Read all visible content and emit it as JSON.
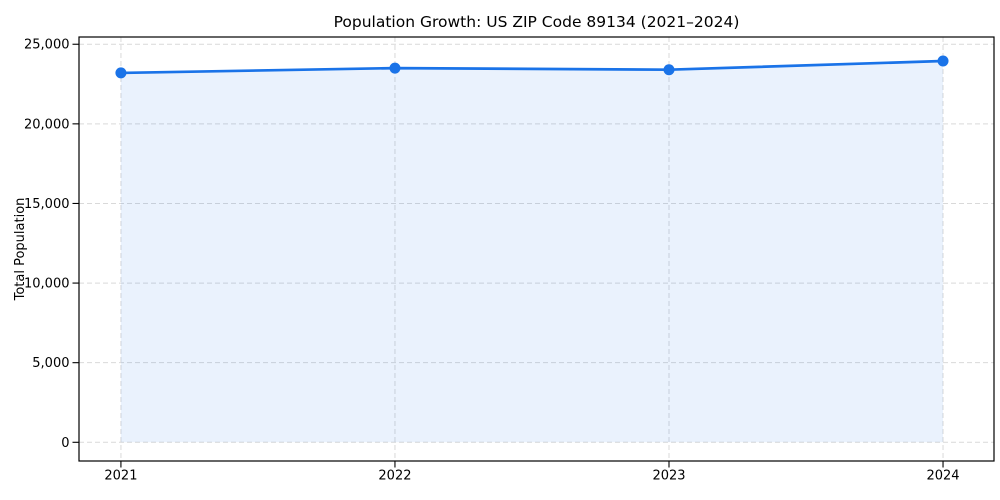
{
  "window": {
    "background": "#ffffff"
  },
  "chart_data": {
    "type": "area",
    "title": "Population Growth: US ZIP Code 89134 (2021–2024)",
    "xlabel": "",
    "ylabel": "Total Population",
    "x": [
      2021,
      2022,
      2023,
      2024
    ],
    "x_tick_labels": [
      "2021",
      "2022",
      "2023",
      "2024"
    ],
    "values": [
      23200,
      23500,
      23400,
      23950
    ],
    "yticks": [
      0,
      5000,
      10000,
      15000,
      20000,
      25000
    ],
    "y_tick_labels": [
      "0",
      "5,000",
      "10,000",
      "15,000",
      "20,000",
      "25,000"
    ],
    "ylim": [
      -1175,
      25455
    ],
    "xlim": [
      2020.847,
      2024.186
    ],
    "grid": true,
    "legend": "none",
    "marker": "circle",
    "line_color": "#1a73e8",
    "marker_color": "#1a73e8",
    "fill_color": "rgba(26,115,232,0.09)",
    "grid_color": "#d9d9d9",
    "axis_color": "#000000",
    "text_color": "#000000"
  }
}
